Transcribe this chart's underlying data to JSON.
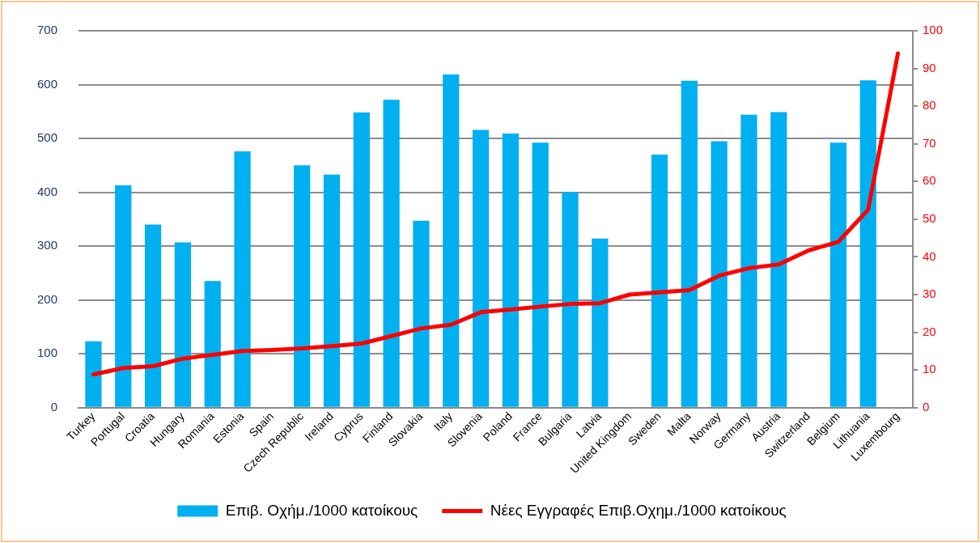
{
  "chart_data": {
    "type": "bar",
    "categories": [
      "Turkey",
      "Portugal",
      "Croatia",
      "Hungary",
      "Romania",
      "Estonia",
      "Spain",
      "Czech Republic",
      "Ireland",
      "Cyprus",
      "Finland",
      "Slovakia",
      "Italy",
      "Slovenia",
      "Poland",
      "France",
      "Bulgaria",
      "Latvia",
      "United Kingdom",
      "Sweden",
      "Malta",
      "Norway",
      "Germany",
      "Austria",
      "Switzerland",
      "Belgium",
      "Lithuania",
      "Luxembourg"
    ],
    "series": [
      {
        "name": "Επιβ. Οχήμ./1000 κατοίκους",
        "color": "#00b0f0",
        "values": [
          123,
          413,
          340,
          307,
          235,
          476,
          null,
          450,
          433,
          548,
          572,
          347,
          619,
          516,
          509,
          492,
          400,
          314,
          null,
          470,
          607,
          495,
          544,
          549,
          null,
          492,
          608,
          null
        ]
      },
      {
        "name": "Νέες Εγγραφές Επιβ.Οχημ./1000 κατοίκους",
        "type": "line",
        "axis": "y2",
        "color": "#ff0000",
        "values": [
          8.8,
          10.5,
          11,
          13,
          14,
          15,
          15.3,
          15.7,
          16.3,
          17,
          19,
          21,
          22,
          25.3,
          26,
          26.8,
          27.5,
          27.7,
          30,
          30.6,
          31.2,
          35,
          37,
          38,
          41.7,
          44,
          52.5,
          94
        ]
      }
    ],
    "ylim": [
      0,
      700
    ],
    "yticks": [
      0,
      100,
      200,
      300,
      400,
      500,
      600,
      700
    ],
    "y2lim": [
      0,
      100
    ],
    "y2ticks": [
      0,
      10,
      20,
      30,
      40,
      50,
      60,
      70,
      80,
      90,
      100
    ],
    "grid": "y",
    "legend": "bottom",
    "marker": "none",
    "line_style": "solid"
  }
}
